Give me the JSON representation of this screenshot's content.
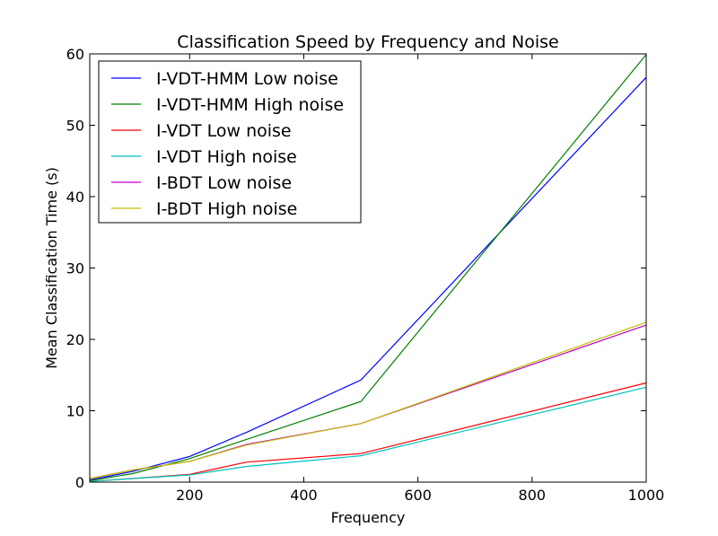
{
  "chart_data": {
    "type": "line",
    "title": "Classification Speed by Frequency and Noise",
    "xlabel": "Frequency",
    "ylabel": "Mean Classification Time (s)",
    "xlim": [
      25,
      1000
    ],
    "ylim": [
      0,
      60
    ],
    "xticks": [
      "200",
      "400",
      "600",
      "800",
      "1000"
    ],
    "yticks": [
      "0",
      "10",
      "20",
      "30",
      "40",
      "50",
      "60"
    ],
    "xtick_values": [
      200,
      400,
      600,
      800,
      1000
    ],
    "ytick_values": [
      0,
      10,
      20,
      30,
      40,
      50,
      60
    ],
    "grid": false,
    "legend_position": "top-left",
    "x": [
      25,
      100,
      200,
      300,
      500,
      1000
    ],
    "series": [
      {
        "name": "I-VDT-HMM Low noise",
        "color": "#0000ff",
        "values": [
          0.3,
          1.5,
          3.6,
          7.0,
          14.3,
          56.7
        ]
      },
      {
        "name": "I-VDT-HMM High noise",
        "color": "#008000",
        "values": [
          0.2,
          1.2,
          3.3,
          6.0,
          11.3,
          59.9
        ]
      },
      {
        "name": "I-VDT Low noise",
        "color": "#ff0000",
        "values": [
          0.1,
          0.5,
          1.1,
          2.8,
          4.0,
          13.9
        ]
      },
      {
        "name": "I-VDT High noise",
        "color": "#00bfbf",
        "values": [
          0.1,
          0.5,
          1.0,
          2.2,
          3.7,
          13.3
        ]
      },
      {
        "name": "I-BDT Low noise",
        "color": "#bf00bf",
        "values": [
          0.5,
          1.7,
          2.9,
          5.3,
          8.2,
          22.0
        ]
      },
      {
        "name": "I-BDT High noise",
        "color": "#bfbf00",
        "values": [
          0.5,
          1.7,
          2.9,
          5.2,
          8.2,
          22.4
        ]
      }
    ]
  }
}
